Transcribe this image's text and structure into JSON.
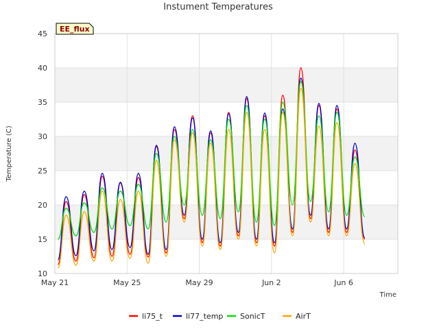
{
  "chart_data": {
    "type": "line",
    "title": "Instument Temperatures",
    "xlabel": "Time",
    "ylabel": "Temperature (C)",
    "ylim": [
      10,
      45
    ],
    "xlim": [
      "2023-05-21",
      "2023-06-09"
    ],
    "yticks": [
      10,
      15,
      20,
      25,
      30,
      35,
      40,
      45
    ],
    "xticks": [
      {
        "date": "2023-05-21",
        "label": "May 21"
      },
      {
        "date": "2023-05-25",
        "label": "May 25"
      },
      {
        "date": "2023-05-29",
        "label": "May 29"
      },
      {
        "date": "2023-06-02",
        "label": "Jun 2"
      },
      {
        "date": "2023-06-06",
        "label": "Jun 6"
      }
    ],
    "grid": true,
    "legend_position": "bottom",
    "badge": "EE_flux",
    "x": [
      "2023-05-21 04:00",
      "2023-05-21 15:00",
      "2023-05-22 04:00",
      "2023-05-22 15:00",
      "2023-05-23 04:00",
      "2023-05-23 15:00",
      "2023-05-24 04:00",
      "2023-05-24 15:00",
      "2023-05-25 04:00",
      "2023-05-25 15:00",
      "2023-05-26 04:00",
      "2023-05-26 15:00",
      "2023-05-27 04:00",
      "2023-05-27 15:00",
      "2023-05-28 04:00",
      "2023-05-28 15:00",
      "2023-05-29 04:00",
      "2023-05-29 15:00",
      "2023-05-30 04:00",
      "2023-05-30 15:00",
      "2023-05-31 04:00",
      "2023-05-31 15:00",
      "2023-06-01 04:00",
      "2023-06-01 15:00",
      "2023-06-02 04:00",
      "2023-06-02 15:00",
      "2023-06-03 04:00",
      "2023-06-03 15:00",
      "2023-06-04 04:00",
      "2023-06-04 15:00",
      "2023-06-05 04:00",
      "2023-06-05 15:00",
      "2023-06-06 04:00",
      "2023-06-06 15:00",
      "2023-06-07 04:00",
      "2023-06-07 15:00",
      "2023-06-08 04:00"
    ],
    "series": [
      {
        "name": "li75_t",
        "color": "#ff0000",
        "values": [
          11.3,
          20.5,
          11.8,
          21.5,
          12.3,
          24.2,
          12.5,
          23.2,
          12.8,
          24.0,
          12.4,
          28.5,
          13.0,
          31.0,
          18.0,
          33.0,
          14.5,
          30.5,
          14.0,
          33.5,
          15.5,
          35.5,
          14.5,
          33.0,
          14.0,
          36.0,
          16.0,
          40.0,
          18.0,
          34.5,
          16.0,
          34.0,
          16.0,
          28.0,
          15.0,
          null,
          null
        ]
      },
      {
        "name": "li77_temp",
        "color": "#0000cc",
        "values": [
          12.0,
          21.2,
          12.6,
          22.0,
          13.3,
          24.6,
          13.5,
          23.3,
          13.8,
          24.6,
          12.8,
          28.7,
          13.5,
          31.4,
          18.5,
          32.7,
          15.0,
          30.8,
          14.5,
          33.3,
          16.0,
          35.8,
          15.0,
          33.4,
          14.5,
          34.0,
          16.5,
          38.5,
          18.5,
          34.8,
          16.5,
          34.5,
          16.5,
          29.0,
          15.2,
          null,
          null
        ]
      },
      {
        "name": "SonicT",
        "color": "#00e000",
        "values": [
          15.0,
          19.5,
          15.5,
          20.3,
          16.0,
          22.5,
          16.5,
          22.0,
          17.0,
          23.0,
          16.5,
          27.5,
          17.5,
          30.0,
          20.0,
          31.0,
          18.5,
          29.5,
          18.0,
          32.5,
          19.0,
          34.5,
          17.5,
          32.5,
          17.0,
          35.0,
          20.0,
          38.0,
          20.5,
          33.0,
          19.0,
          33.5,
          18.5,
          27.0,
          18.3,
          null,
          null
        ]
      },
      {
        "name": "AirT",
        "color": "#ffa500",
        "values": [
          10.8,
          18.5,
          11.2,
          19.0,
          11.8,
          22.0,
          11.8,
          20.8,
          12.2,
          22.0,
          11.5,
          26.5,
          12.5,
          29.5,
          17.5,
          30.5,
          14.0,
          29.0,
          13.5,
          31.0,
          15.0,
          33.5,
          14.0,
          31.0,
          13.0,
          33.5,
          15.5,
          37.0,
          17.5,
          31.5,
          15.5,
          32.0,
          15.5,
          26.0,
          14.3,
          null,
          null
        ]
      }
    ]
  }
}
